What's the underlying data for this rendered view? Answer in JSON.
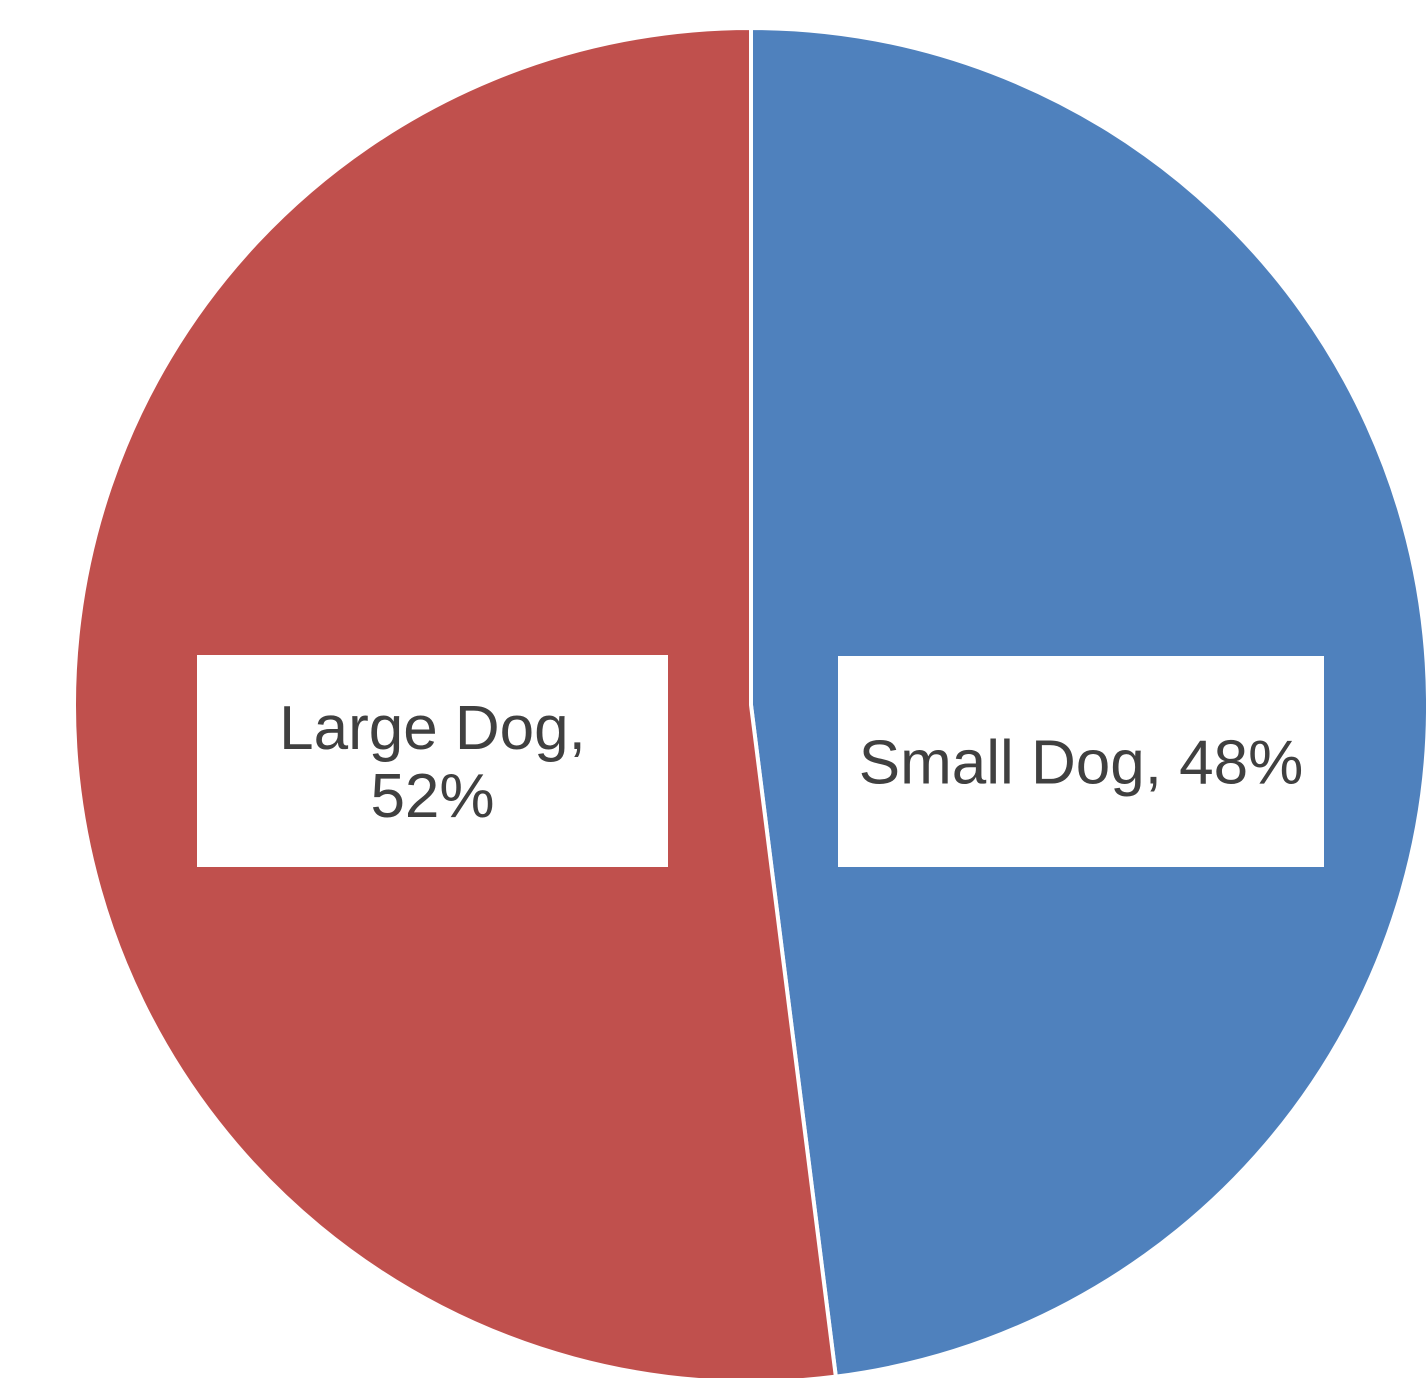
{
  "chart_data": {
    "type": "pie",
    "slices": [
      {
        "name": "Small Dog",
        "value": 48,
        "color": "#4f81bd",
        "label_lines": [
          "Small Dog, 48%"
        ]
      },
      {
        "name": "Large Dog",
        "value": 52,
        "color": "#c0504d",
        "label_lines": [
          "Large Dog,",
          "52%"
        ]
      }
    ],
    "start_angle_deg": 0,
    "direction": "clockwise",
    "legend": "none"
  }
}
